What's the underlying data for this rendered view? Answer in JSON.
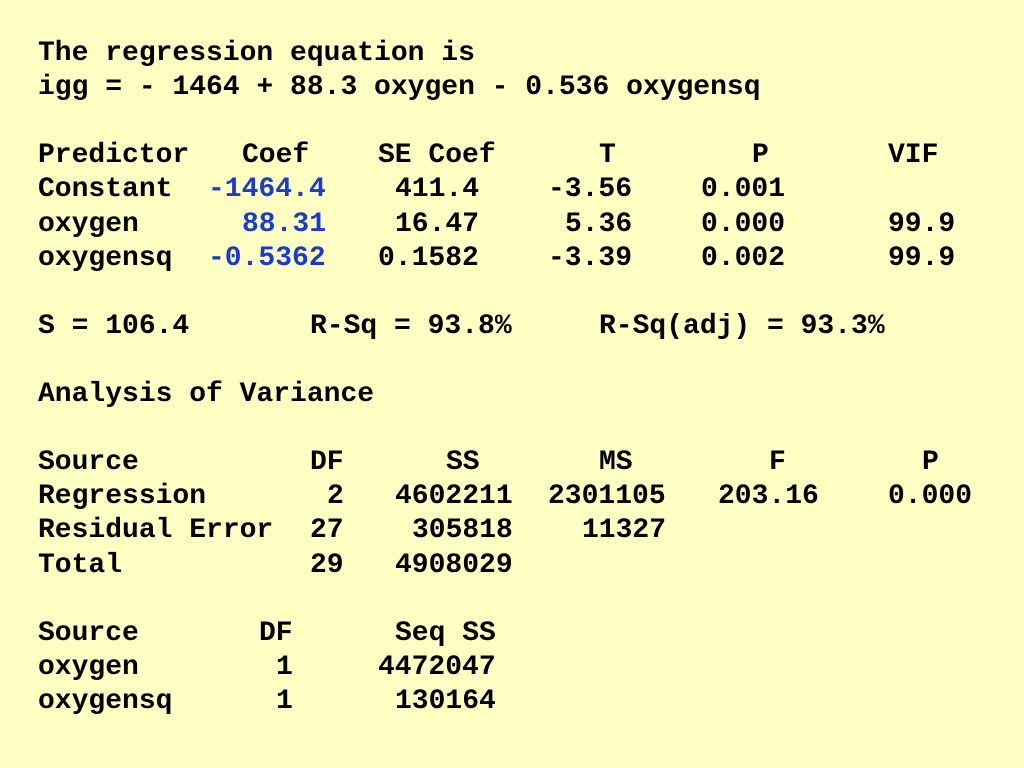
{
  "equation": {
    "title": "The regression equation is",
    "formula": "igg = - 1464 + 88.3 oxygen - 0.536 oxygensq"
  },
  "coefficients": {
    "header": [
      "Predictor",
      "Coef",
      "SE Coef",
      "T",
      "P",
      "VIF"
    ],
    "rows": [
      [
        "Constant",
        "-1464.4",
        "411.4",
        "-3.56",
        "0.001"
      ],
      [
        "oxygen",
        "88.31",
        "16.47",
        "5.36",
        "0.000",
        "99.9"
      ],
      [
        "oxygensq",
        "-0.5362",
        "0.1582",
        "-3.39",
        "0.002",
        "99.9"
      ]
    ]
  },
  "summary": [
    "S = 106.4",
    "R-Sq = 93.8%",
    "R-Sq(adj) = 93.3%"
  ],
  "anova": {
    "title": "Analysis of Variance",
    "header": [
      "Source",
      "DF",
      "SS",
      "MS",
      "F",
      "P"
    ],
    "rows": [
      [
        "Regression",
        "2",
        "4602211",
        "2301105",
        "203.16",
        "0.000"
      ],
      [
        "Residual Error",
        "27",
        "305818",
        "11327"
      ],
      [
        "Total",
        "29",
        "4908029"
      ]
    ]
  },
  "seq_ss": {
    "header": [
      "Source",
      "DF",
      "Seq SS"
    ],
    "rows": [
      [
        "oxygen",
        "1",
        "4472047"
      ],
      [
        "oxygensq",
        "1",
        "130164"
      ]
    ]
  }
}
